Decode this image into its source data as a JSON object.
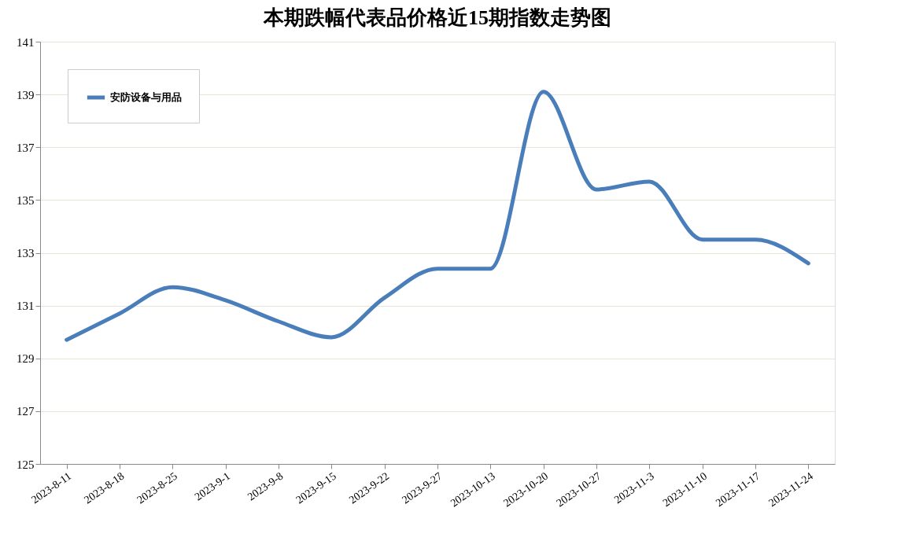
{
  "chart_data": {
    "type": "line",
    "title": "本期跌幅代表品价格近15期指数走势图",
    "categories": [
      "2023-8-11",
      "2023-8-18",
      "2023-8-25",
      "2023-9-1",
      "2023-9-8",
      "2023-9-15",
      "2023-9-22",
      "2023-9-27",
      "2023-10-13",
      "2023-10-20",
      "2023-10-27",
      "2023-11-3",
      "2023-11-10",
      "2023-11-17",
      "2023-11-24"
    ],
    "series": [
      {
        "name": "安防设备与用品",
        "color": "#4a7ebb",
        "values": [
          129.7,
          130.7,
          131.7,
          131.2,
          130.4,
          129.8,
          131.3,
          132.4,
          132.4,
          139.1,
          135.4,
          135.7,
          133.5,
          133.5,
          132.6
        ]
      }
    ],
    "ylim": [
      125,
      141
    ],
    "yticks": [
      125,
      127,
      129,
      131,
      133,
      135,
      137,
      139,
      141
    ],
    "grid": "y",
    "legend": "top left",
    "marker": "none",
    "line_style": "solid"
  }
}
